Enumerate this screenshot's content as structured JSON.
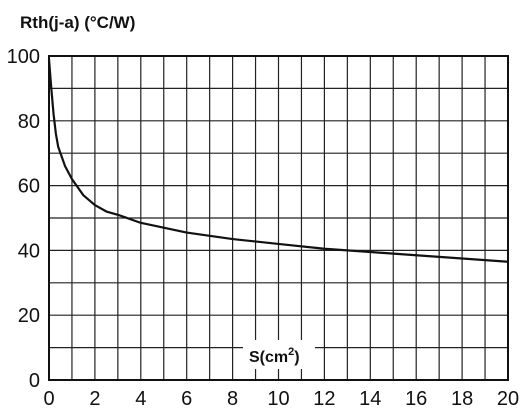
{
  "chart_data": {
    "type": "line",
    "ylabel": "Rth(j-a) (°C/W)",
    "xlabel": "S(cm",
    "xlabel_sup": "2",
    "xlabel_suffix": ")",
    "xlim": [
      0,
      20
    ],
    "ylim": [
      0,
      100
    ],
    "x_ticks": [
      0,
      2,
      4,
      6,
      8,
      10,
      12,
      14,
      16,
      18,
      20
    ],
    "y_ticks": [
      0,
      20,
      40,
      60,
      80,
      100
    ],
    "x_tick_labels": [
      "0",
      "2",
      "4",
      "6",
      "8",
      "10",
      "12",
      "14",
      "16",
      "18",
      "20"
    ],
    "y_tick_labels": [
      "0",
      "20",
      "40",
      "60",
      "80",
      "100"
    ],
    "grid": true,
    "grid_x_step": 1,
    "grid_y_step": 10,
    "series": [
      {
        "x": [
          0,
          0.1,
          0.2,
          0.3,
          0.4,
          0.5,
          0.7,
          1.0,
          1.5,
          2.0,
          2.5,
          3.0,
          4.0,
          5.0,
          6.0,
          8.0,
          10.0,
          12.0,
          14.0,
          16.0,
          18.0,
          20.0
        ],
        "y": [
          99,
          90,
          82,
          76,
          72,
          70,
          66,
          62,
          57,
          54,
          52,
          51,
          48.5,
          47,
          45.5,
          43.5,
          42,
          40.5,
          39.5,
          38.5,
          37.5,
          36.5
        ]
      }
    ]
  }
}
